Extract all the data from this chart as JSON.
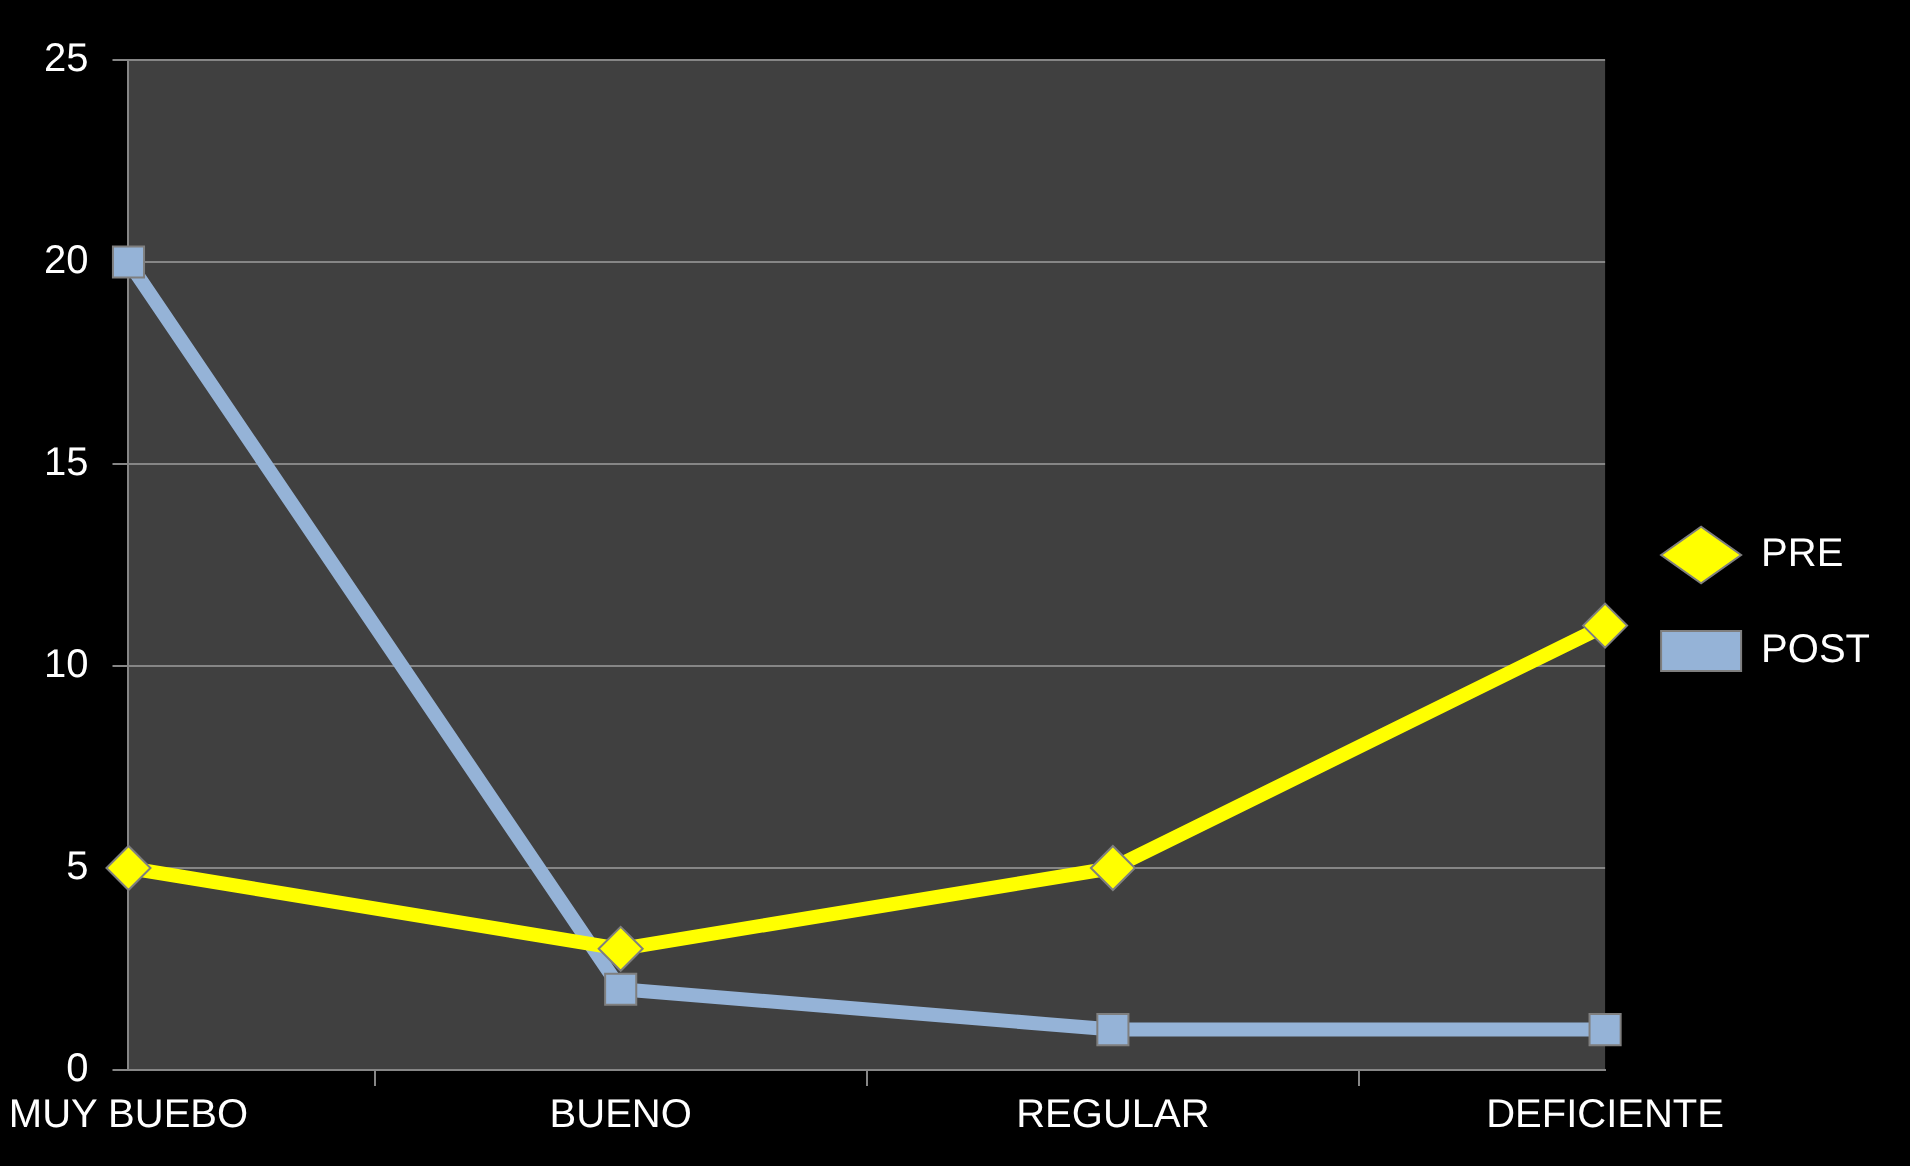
{
  "chart_data": {
    "type": "line",
    "categories": [
      "MUY BUEBO",
      "BUENO",
      "REGULAR",
      "DEFICIENTE"
    ],
    "series": [
      {
        "name": "PRE",
        "color": "#ffff00",
        "values": [
          5,
          3,
          5,
          11
        ],
        "marker": "diamond"
      },
      {
        "name": "POST",
        "color": "#95b3d7",
        "values": [
          20,
          2,
          1,
          1
        ],
        "marker": "square"
      }
    ],
    "ylim": [
      0,
      25
    ],
    "yticks": [
      0,
      5,
      10,
      15,
      20,
      25
    ],
    "grid": "y",
    "legend": "right",
    "line_style": "solid"
  }
}
